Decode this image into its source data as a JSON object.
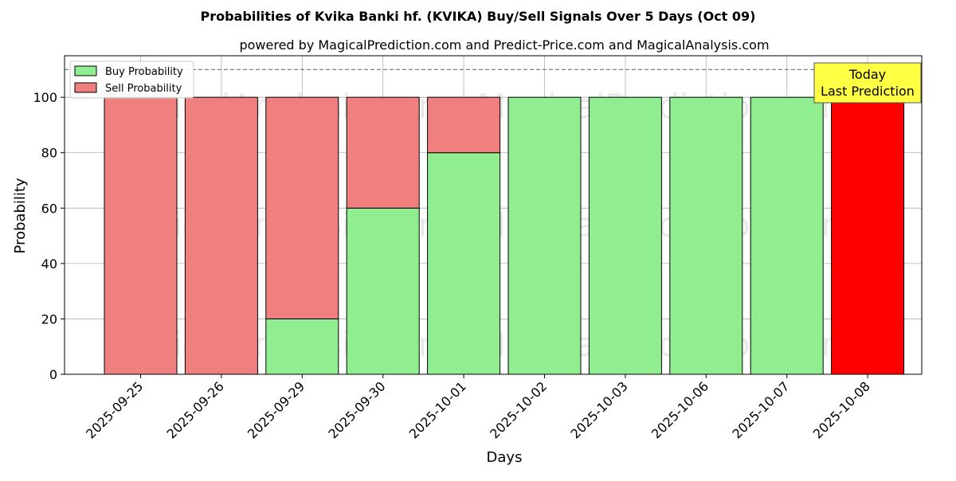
{
  "chart_data": {
    "type": "bar",
    "stacked": true,
    "title": "Probabilities of Kvika Banki hf. (KVIKA) Buy/Sell Signals Over 5 Days (Oct 09)",
    "subtitle": "powered by MagicalPrediction.com and Predict-Price.com and MagicalAnalysis.com",
    "xlabel": "Days",
    "ylabel": "Probability",
    "ylim": [
      0,
      115
    ],
    "yticks": [
      0,
      20,
      40,
      60,
      80,
      100
    ],
    "reference_line": 110,
    "grid": true,
    "legend_position": "top-left",
    "categories": [
      "2025-09-25",
      "2025-09-26",
      "2025-09-29",
      "2025-09-30",
      "2025-10-01",
      "2025-10-02",
      "2025-10-03",
      "2025-10-06",
      "2025-10-07",
      "2025-10-08"
    ],
    "series": [
      {
        "name": "Buy Probability",
        "color": "#90ee90",
        "values": [
          0,
          0,
          20,
          60,
          80,
          100,
          100,
          100,
          100,
          0
        ]
      },
      {
        "name": "Sell Probability",
        "color": "#f08080",
        "values": [
          100,
          100,
          80,
          40,
          20,
          0,
          0,
          0,
          0,
          100
        ]
      }
    ],
    "highlight": {
      "category": "2025-10-08",
      "color": "#ff0000"
    },
    "annotation": {
      "lines": [
        "Today",
        "Last Prediction"
      ],
      "background": "#ffff44"
    },
    "watermarks": [
      "MagicalAnalysis.com",
      "MagicalPrediction.com"
    ]
  }
}
